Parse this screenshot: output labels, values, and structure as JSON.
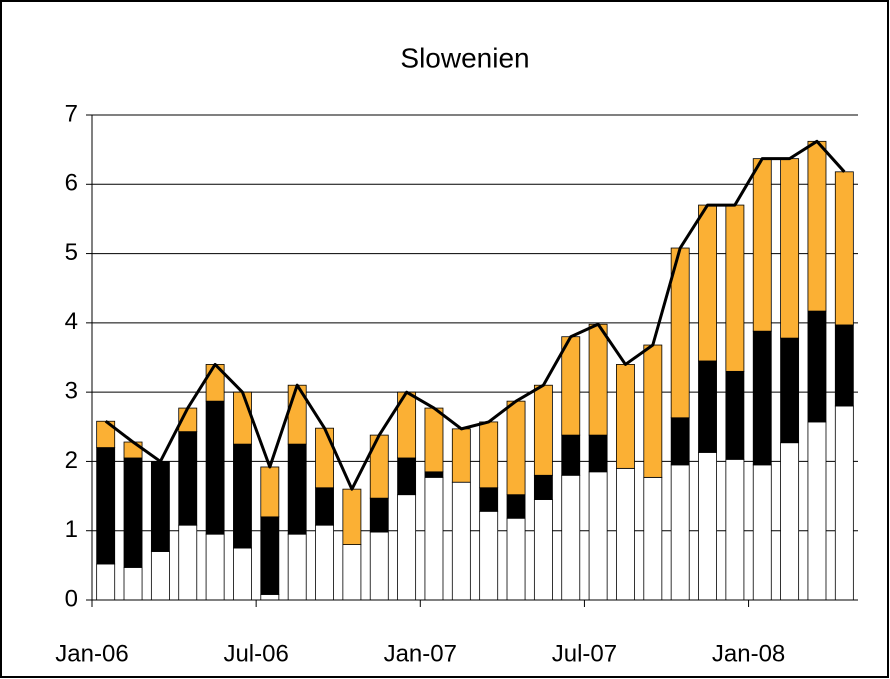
{
  "chart_data": {
    "type": "bar",
    "stacked": true,
    "title": "Slowenien",
    "categories": [
      "Jan-06",
      null,
      null,
      null,
      null,
      null,
      "Jul-06",
      null,
      null,
      null,
      null,
      null,
      "Jan-07",
      null,
      null,
      null,
      null,
      null,
      "Jul-07",
      null,
      null,
      null,
      null,
      null,
      "Jan-08",
      null,
      null,
      null
    ],
    "series": [
      {
        "color": "#ffffff",
        "values": [
          0.52,
          0.47,
          0.7,
          1.08,
          0.95,
          0.75,
          0.08,
          0.95,
          1.08,
          0.8,
          0.98,
          1.52,
          1.77,
          1.7,
          1.28,
          1.18,
          1.45,
          1.8,
          1.85,
          1.9,
          1.77,
          1.95,
          2.13,
          2.03,
          1.95,
          2.27,
          2.57,
          2.8
        ]
      },
      {
        "color": "#000000",
        "values": [
          1.68,
          1.58,
          1.3,
          1.35,
          1.92,
          1.5,
          1.12,
          1.3,
          0.54,
          0,
          0.49,
          0.53,
          0.08,
          0,
          0.34,
          0.34,
          0.35,
          0.58,
          0.53,
          0,
          0,
          0.68,
          1.32,
          1.27,
          1.93,
          1.51,
          1.6,
          1.17
        ]
      },
      {
        "color": "#fbb034",
        "values": [
          0.38,
          0.23,
          0,
          0.34,
          0.53,
          0.75,
          0.72,
          0.85,
          0.86,
          0.8,
          0.91,
          0.95,
          0.92,
          0.77,
          0.95,
          1.35,
          1.3,
          1.42,
          1.6,
          1.5,
          1.91,
          2.45,
          2.25,
          2.4,
          2.49,
          2.59,
          2.45,
          2.21
        ]
      },
      {
        "type": "line",
        "color": "#000000",
        "values": [
          2.58,
          2.28,
          2.0,
          2.77,
          3.4,
          3.0,
          1.92,
          3.1,
          2.48,
          1.6,
          2.38,
          3.0,
          2.77,
          2.47,
          2.57,
          2.87,
          3.1,
          3.8,
          3.98,
          3.4,
          3.68,
          5.08,
          5.7,
          5.7,
          6.37,
          6.37,
          6.62,
          6.18
        ]
      }
    ],
    "ylim": [
      0,
      7
    ],
    "yticks": [
      0,
      1,
      2,
      3,
      4,
      5,
      6,
      7
    ],
    "grid": true
  }
}
